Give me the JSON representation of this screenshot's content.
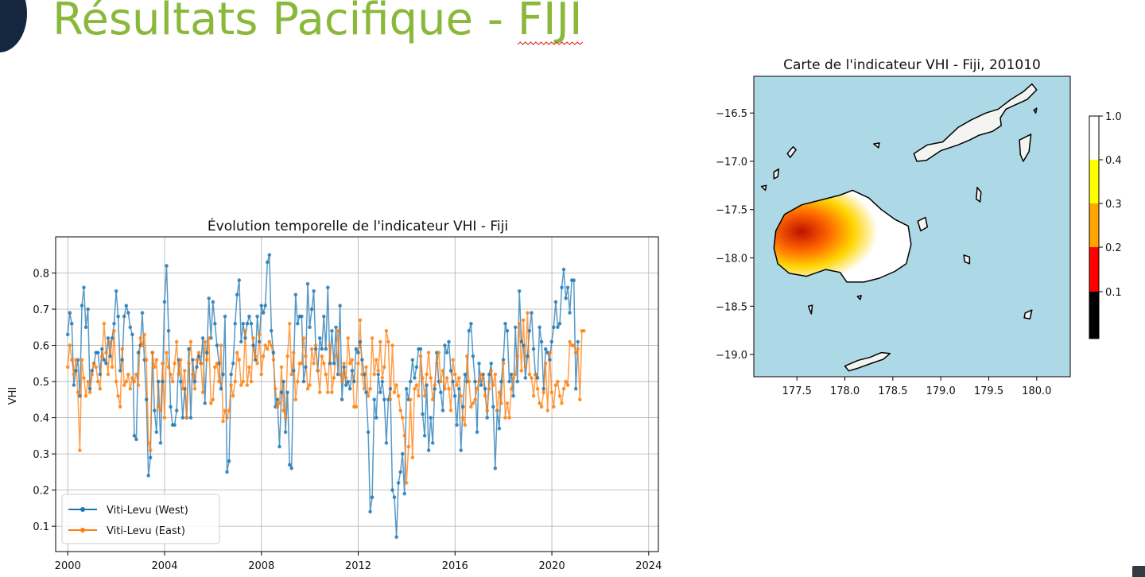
{
  "slide": {
    "title_prefix": "Résultats Pacifique - ",
    "title_country": "FIJI"
  },
  "colors": {
    "title": "#8ab83a",
    "west_series": "#1f77b4",
    "east_series": "#ff7f0e",
    "ocean": "#add8e6",
    "spellcheck_underline": "#e03030"
  },
  "chart_data": [
    {
      "type": "line",
      "title": "Évolution temporelle de l'indicateur VHI - Fiji",
      "xlabel": "",
      "ylabel": "VHI",
      "xlim": [
        1999.5,
        2024.4
      ],
      "ylim": [
        0.03,
        0.9
      ],
      "x_ticks": [
        2000,
        2004,
        2008,
        2012,
        2016,
        2020,
        2024
      ],
      "y_ticks": [
        0.1,
        0.2,
        0.3,
        0.4,
        0.5,
        0.6,
        0.7,
        0.8
      ],
      "grid": true,
      "legend_position": "bottom-left",
      "x_start": 2000.0,
      "x_step": 0.0833,
      "series": [
        {
          "name": "Viti-Levu (West)",
          "color": "#1f77b4",
          "values": [
            0.63,
            0.69,
            0.66,
            0.49,
            0.53,
            0.56,
            0.46,
            0.71,
            0.76,
            0.65,
            0.7,
            0.48,
            0.53,
            0.55,
            0.58,
            0.58,
            0.52,
            0.59,
            0.56,
            0.55,
            0.62,
            0.57,
            0.62,
            0.66,
            0.75,
            0.68,
            0.53,
            0.56,
            0.68,
            0.71,
            0.69,
            0.65,
            0.63,
            0.35,
            0.34,
            0.58,
            0.6,
            0.69,
            0.56,
            0.45,
            0.24,
            0.29,
            0.58,
            0.42,
            0.36,
            0.5,
            0.33,
            0.5,
            0.72,
            0.82,
            0.64,
            0.43,
            0.38,
            0.38,
            0.42,
            0.56,
            0.5,
            0.4,
            0.48,
            0.4,
            0.59,
            0.4,
            0.56,
            0.5,
            0.54,
            0.57,
            0.55,
            0.62,
            0.44,
            0.58,
            0.73,
            0.62,
            0.72,
            0.66,
            0.6,
            0.55,
            0.48,
            0.52,
            0.68,
            0.25,
            0.28,
            0.52,
            0.55,
            0.66,
            0.74,
            0.78,
            0.61,
            0.66,
            0.62,
            0.66,
            0.68,
            0.66,
            0.6,
            0.56,
            0.68,
            0.61,
            0.71,
            0.69,
            0.71,
            0.83,
            0.85,
            0.64,
            0.58,
            0.43,
            0.45,
            0.32,
            0.47,
            0.5,
            0.36,
            0.47,
            0.27,
            0.26,
            0.53,
            0.74,
            0.66,
            0.68,
            0.68,
            0.5,
            0.54,
            0.77,
            0.65,
            0.7,
            0.75,
            0.59,
            0.53,
            0.62,
            0.59,
            0.68,
            0.59,
            0.76,
            0.55,
            0.64,
            0.55,
            0.65,
            0.52,
            0.71,
            0.45,
            0.54,
            0.49,
            0.5,
            0.48,
            0.53,
            0.5,
            0.59,
            0.58,
            0.61,
            0.56,
            0.52,
            0.47,
            0.36,
            0.14,
            0.18,
            0.45,
            0.4,
            0.52,
            0.47,
            0.5,
            0.45,
            0.33,
            0.45,
            0.48,
            0.2,
            0.18,
            0.07,
            0.22,
            0.25,
            0.3,
            0.19,
            0.48,
            0.45,
            0.5,
            0.56,
            0.51,
            0.54,
            0.59,
            0.59,
            0.41,
            0.35,
            0.49,
            0.31,
            0.4,
            0.33,
            0.48,
            0.58,
            0.5,
            0.47,
            0.42,
            0.6,
            0.58,
            0.61,
            0.53,
            0.5,
            0.46,
            0.38,
            0.48,
            0.31,
            0.43,
            0.52,
            0.5,
            0.64,
            0.66,
            0.57,
            0.5,
            0.36,
            0.55,
            0.49,
            0.52,
            0.48,
            0.4,
            0.52,
            0.55,
            0.43,
            0.26,
            0.42,
            0.37,
            0.5,
            0.56,
            0.66,
            0.64,
            0.5,
            0.52,
            0.46,
            0.65,
            0.5,
            0.75,
            0.61,
            0.6,
            0.51,
            0.57,
            0.64,
            0.69,
            0.59,
            0.52,
            0.51,
            0.65,
            0.61,
            0.48,
            0.59,
            0.58,
            0.56,
            0.61,
            0.65,
            0.72,
            0.65,
            0.66,
            0.76,
            0.81,
            0.73,
            0.76,
            0.69,
            0.78,
            0.78,
            0.48,
            0.61
          ]
        },
        {
          "name": "Viti-Levu (East)",
          "color": "#ff7f0e",
          "values": [
            0.54,
            0.6,
            0.56,
            0.52,
            0.56,
            0.47,
            0.31,
            0.56,
            0.51,
            0.46,
            0.5,
            0.47,
            0.52,
            0.55,
            0.54,
            0.5,
            0.48,
            0.57,
            0.66,
            0.58,
            0.52,
            0.61,
            0.54,
            0.64,
            0.5,
            0.46,
            0.43,
            0.59,
            0.49,
            0.5,
            0.52,
            0.48,
            0.51,
            0.5,
            0.52,
            0.49,
            0.62,
            0.6,
            0.63,
            0.56,
            0.33,
            0.31,
            0.58,
            0.54,
            0.56,
            0.43,
            0.42,
            0.55,
            0.4,
            0.58,
            0.54,
            0.52,
            0.5,
            0.55,
            0.61,
            0.52,
            0.56,
            0.48,
            0.53,
            0.4,
            0.55,
            0.61,
            0.52,
            0.48,
            0.56,
            0.58,
            0.55,
            0.47,
            0.61,
            0.56,
            0.62,
            0.44,
            0.45,
            0.54,
            0.55,
            0.5,
            0.6,
            0.39,
            0.42,
            0.4,
            0.42,
            0.49,
            0.46,
            0.5,
            0.58,
            0.56,
            0.49,
            0.5,
            0.64,
            0.49,
            0.54,
            0.5,
            0.62,
            0.57,
            0.55,
            0.63,
            0.52,
            0.57,
            0.6,
            0.59,
            0.61,
            0.6,
            0.56,
            0.48,
            0.43,
            0.44,
            0.54,
            0.42,
            0.4,
            0.57,
            0.66,
            0.52,
            0.58,
            0.45,
            0.5,
            0.55,
            0.55,
            0.62,
            0.57,
            0.48,
            0.49,
            0.59,
            0.55,
            0.6,
            0.53,
            0.47,
            0.57,
            0.55,
            0.52,
            0.47,
            0.6,
            0.47,
            0.51,
            0.57,
            0.64,
            0.52,
            0.5,
            0.55,
            0.51,
            0.62,
            0.55,
            0.56,
            0.43,
            0.43,
            0.55,
            0.67,
            0.52,
            0.48,
            0.54,
            0.46,
            0.48,
            0.62,
            0.52,
            0.56,
            0.53,
            0.61,
            0.51,
            0.54,
            0.64,
            0.61,
            0.45,
            0.6,
            0.47,
            0.49,
            0.46,
            0.42,
            0.4,
            0.35,
            0.22,
            0.32,
            0.45,
            0.29,
            0.48,
            0.49,
            0.46,
            0.57,
            0.51,
            0.46,
            0.52,
            0.58,
            0.51,
            0.45,
            0.49,
            0.55,
            0.58,
            0.5,
            0.53,
            0.48,
            0.51,
            0.48,
            0.42,
            0.56,
            0.52,
            0.49,
            0.51,
            0.46,
            0.4,
            0.38,
            0.57,
            0.5,
            0.43,
            0.44,
            0.45,
            0.48,
            0.5,
            0.52,
            0.51,
            0.46,
            0.42,
            0.48,
            0.53,
            0.49,
            0.52,
            0.42,
            0.47,
            0.44,
            0.55,
            0.4,
            0.44,
            0.4,
            0.48,
            0.51,
            0.52,
            0.57,
            0.66,
            0.53,
            0.67,
            0.54,
            0.69,
            0.52,
            0.51,
            0.46,
            0.52,
            0.48,
            0.44,
            0.43,
            0.47,
            0.55,
            0.42,
            0.58,
            0.47,
            0.43,
            0.49,
            0.5,
            0.46,
            0.44,
            0.48,
            0.5,
            0.49,
            0.61,
            0.6,
            0.6,
            0.58,
            0.59,
            0.45,
            0.64,
            0.64
          ]
        }
      ]
    },
    {
      "type": "heatmap",
      "title": "Carte de l'indicateur VHI - Fiji, 201010",
      "xlabel": "",
      "ylabel": "",
      "xlim": [
        177.05,
        180.35
      ],
      "ylim": [
        -19.23,
        -16.12
      ],
      "x_ticks": [
        177.5,
        178.0,
        178.5,
        179.0,
        179.5,
        180.0
      ],
      "x_tick_labels": [
        "177.5",
        "178.0",
        "178.5",
        "179.0",
        "179.5",
        "180.0"
      ],
      "y_ticks": [
        -16.5,
        -17.0,
        -17.5,
        -18.0,
        -18.5,
        -19.0
      ],
      "y_tick_labels": [
        "−16.5",
        "−17.0",
        "−17.5",
        "−18.0",
        "−18.5",
        "−19.0"
      ],
      "background": "ocean",
      "colorbar": {
        "levels": [
          0.1,
          0.2,
          0.3,
          0.4,
          1.0
        ],
        "labels": [
          "0.1",
          "0.2",
          "0.3",
          "0.4",
          "1.0"
        ],
        "colors": [
          "#000000",
          "#ff0000",
          "#ffa500",
          "#ffff00",
          "#ffffff"
        ]
      },
      "islands": [
        {
          "name": "Vanua Levu",
          "outline": [
            [
              178.72,
              -16.92
            ],
            [
              178.86,
              -16.83
            ],
            [
              179.02,
              -16.8
            ],
            [
              179.18,
              -16.65
            ],
            [
              179.32,
              -16.57
            ],
            [
              179.47,
              -16.5
            ],
            [
              179.6,
              -16.46
            ],
            [
              179.73,
              -16.36
            ],
            [
              179.86,
              -16.28
            ],
            [
              179.95,
              -16.2
            ],
            [
              180.0,
              -16.26
            ],
            [
              179.9,
              -16.36
            ],
            [
              179.79,
              -16.41
            ],
            [
              179.68,
              -16.46
            ],
            [
              179.62,
              -16.55
            ],
            [
              179.63,
              -16.63
            ],
            [
              179.54,
              -16.69
            ],
            [
              179.4,
              -16.73
            ],
            [
              179.3,
              -16.78
            ],
            [
              179.18,
              -16.83
            ],
            [
              179.0,
              -16.89
            ],
            [
              178.85,
              -16.99
            ],
            [
              178.75,
              -17.0
            ]
          ]
        },
        {
          "name": "Taveuni",
          "outline": [
            [
              179.82,
              -16.78
            ],
            [
              179.94,
              -16.72
            ],
            [
              179.92,
              -16.9
            ],
            [
              179.86,
              -17.0
            ],
            [
              179.83,
              -16.93
            ]
          ]
        },
        {
          "name": "Viti Levu",
          "outline": [
            [
              177.26,
              -17.9
            ],
            [
              177.28,
              -17.72
            ],
            [
              177.37,
              -17.55
            ],
            [
              177.55,
              -17.45
            ],
            [
              177.75,
              -17.4
            ],
            [
              177.95,
              -17.35
            ],
            [
              178.08,
              -17.3
            ],
            [
              178.25,
              -17.38
            ],
            [
              178.38,
              -17.5
            ],
            [
              178.52,
              -17.6
            ],
            [
              178.66,
              -17.67
            ],
            [
              178.69,
              -17.86
            ],
            [
              178.64,
              -18.06
            ],
            [
              178.52,
              -18.14
            ],
            [
              178.36,
              -18.21
            ],
            [
              178.2,
              -18.25
            ],
            [
              178.02,
              -18.25
            ],
            [
              177.95,
              -18.15
            ],
            [
              177.8,
              -18.12
            ],
            [
              177.6,
              -18.19
            ],
            [
              177.42,
              -18.16
            ],
            [
              177.3,
              -18.06
            ]
          ]
        },
        {
          "name": "Kadavu",
          "outline": [
            [
              178.0,
              -19.12
            ],
            [
              178.14,
              -19.06
            ],
            [
              178.26,
              -19.03
            ],
            [
              178.38,
              -18.98
            ],
            [
              178.47,
              -18.99
            ],
            [
              178.4,
              -19.05
            ],
            [
              178.28,
              -19.09
            ],
            [
              178.14,
              -19.14
            ],
            [
              178.04,
              -19.17
            ]
          ]
        },
        {
          "name": "Koro",
          "outline": [
            [
              179.38,
              -17.27
            ],
            [
              179.42,
              -17.32
            ],
            [
              179.41,
              -17.42
            ],
            [
              179.37,
              -17.39
            ]
          ]
        },
        {
          "name": "Ovalau",
          "outline": [
            [
              178.76,
              -17.62
            ],
            [
              178.84,
              -17.58
            ],
            [
              178.86,
              -17.68
            ],
            [
              178.79,
              -17.72
            ]
          ]
        },
        {
          "name": "Gau",
          "outline": [
            [
              179.24,
              -17.97
            ],
            [
              179.3,
              -17.99
            ],
            [
              179.3,
              -18.06
            ],
            [
              179.25,
              -18.04
            ]
          ]
        },
        {
          "name": "Yasawa north",
          "outline": [
            [
              177.4,
              -16.92
            ],
            [
              177.46,
              -16.85
            ],
            [
              177.49,
              -16.88
            ],
            [
              177.43,
              -16.96
            ]
          ]
        },
        {
          "name": "Yasawa south",
          "outline": [
            [
              177.26,
              -17.11
            ],
            [
              177.31,
              -17.08
            ],
            [
              177.3,
              -17.16
            ],
            [
              177.26,
              -17.18
            ]
          ]
        },
        {
          "name": "Waya",
          "outline": [
            [
              177.13,
              -17.26
            ],
            [
              177.18,
              -17.25
            ],
            [
              177.17,
              -17.3
            ]
          ]
        },
        {
          "name": "Yadua",
          "outline": [
            [
              178.3,
              -16.82
            ],
            [
              178.36,
              -16.81
            ],
            [
              178.35,
              -16.86
            ]
          ]
        },
        {
          "name": "Vatulele",
          "outline": [
            [
              177.62,
              -18.5
            ],
            [
              177.66,
              -18.49
            ],
            [
              177.65,
              -18.58
            ]
          ]
        },
        {
          "name": "Beqa",
          "outline": [
            [
              178.13,
              -18.4
            ],
            [
              178.17,
              -18.39
            ],
            [
              178.16,
              -18.43
            ]
          ]
        },
        {
          "name": "Moala",
          "outline": [
            [
              179.88,
              -18.57
            ],
            [
              179.95,
              -18.54
            ],
            [
              179.93,
              -18.63
            ],
            [
              179.87,
              -18.62
            ]
          ]
        },
        {
          "name": "Rabi",
          "outline": [
            [
              179.97,
              -16.47
            ],
            [
              180.0,
              -16.45
            ],
            [
              179.99,
              -16.5
            ]
          ]
        }
      ]
    }
  ]
}
